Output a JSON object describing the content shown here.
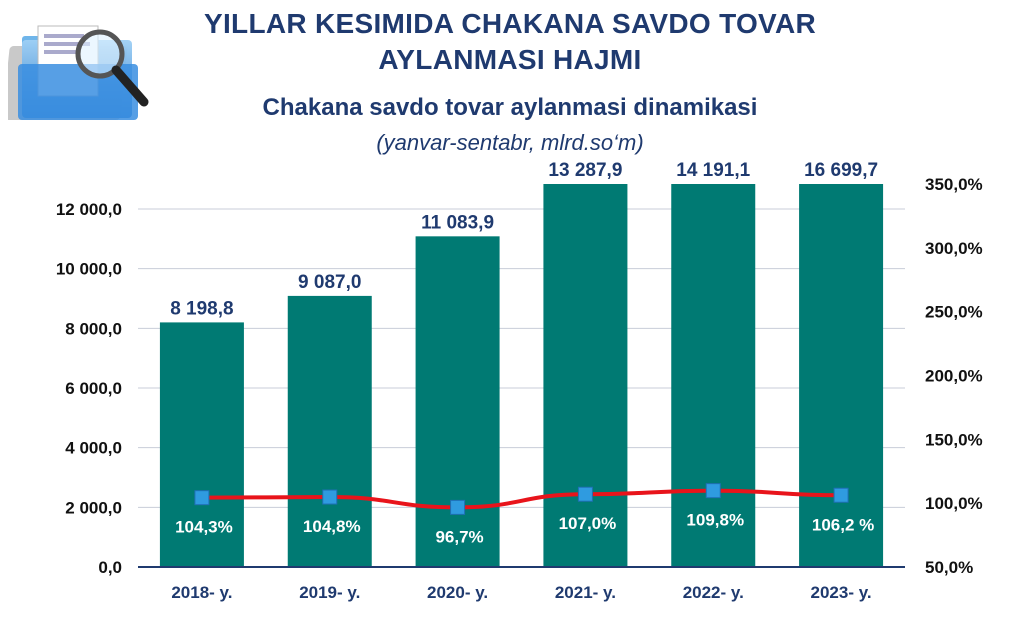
{
  "header": {
    "title_line1": "YILLAR KESIMIDA CHAKANA SAVDO TOVAR",
    "title_line2": "AYLANMASI HAJMI",
    "subtitle": "Chakana savdo tovar aylanmasi dinamikasi",
    "subtitle2": "(yanvar-sentabr, mlrd.so‘m)"
  },
  "logo_icon": "folder-magnifier-icon",
  "chart_data": {
    "type": "bar",
    "categories": [
      "2018- y.",
      "2019- y.",
      "2020- y.",
      "2021- y.",
      "2022- y.",
      "2023- y."
    ],
    "series": [
      {
        "type": "bar",
        "axis": "left",
        "values": [
          8198.8,
          9087.0,
          11083.9,
          13287.9,
          14191.1,
          16699.7
        ],
        "value_labels": [
          "8 198,8",
          "9 087,0",
          "11 083,9",
          "13 287,9",
          "14 191,1",
          "16 699,7"
        ],
        "color": "#007a73"
      },
      {
        "type": "line",
        "axis": "right",
        "values": [
          104.3,
          104.8,
          96.7,
          107.0,
          109.8,
          106.2
        ],
        "value_labels": [
          "104,3%",
          "104,8%",
          "96,7%",
          "107,0%",
          "109,8%",
          "106,2 %"
        ],
        "color": "#e8141b",
        "marker_color": "#2f9be0"
      }
    ],
    "y_left": {
      "ylim": [
        0,
        12000
      ],
      "ticks": [
        0,
        2000,
        4000,
        6000,
        8000,
        10000,
        12000
      ],
      "tick_labels": [
        "0,0",
        "2 000,0",
        "4 000,0",
        "6 000,0",
        "8 000,0",
        "10 000,0",
        "12 000,0"
      ]
    },
    "y_right": {
      "ylim": [
        50,
        350
      ],
      "ticks": [
        50,
        100,
        150,
        200,
        250,
        300,
        350
      ],
      "tick_labels": [
        "50,0%",
        "100,0%",
        "150,0%",
        "200,0%",
        "250,0%",
        "300,0%",
        "350,0%"
      ]
    },
    "grid": true,
    "legend": "none"
  }
}
